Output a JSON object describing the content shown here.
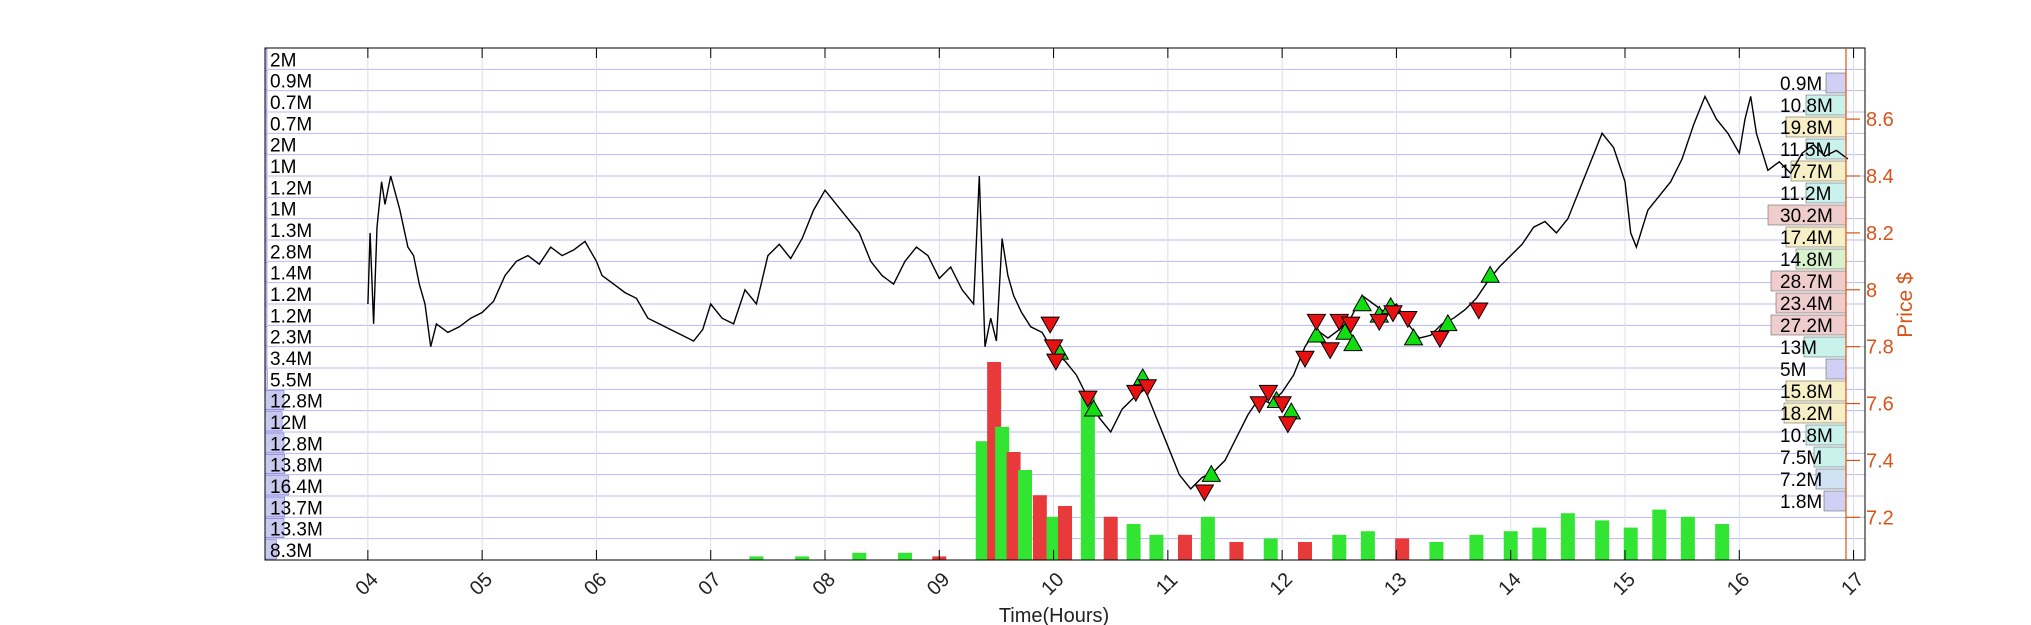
{
  "chart_data": {
    "type": "line",
    "title": "",
    "xlabel": "Time(Hours)",
    "ylabel_right": "Price $",
    "x_range": [
      3.1,
      17.1
    ],
    "y_range": [
      7.05,
      8.85
    ],
    "x_ticks": [
      {
        "value": 4,
        "label": "04"
      },
      {
        "value": 5,
        "label": "05"
      },
      {
        "value": 6,
        "label": "06"
      },
      {
        "value": 7,
        "label": "07"
      },
      {
        "value": 8,
        "label": "08"
      },
      {
        "value": 9,
        "label": "09"
      },
      {
        "value": 10,
        "label": "10"
      },
      {
        "value": 11,
        "label": "11"
      },
      {
        "value": 12,
        "label": "12"
      },
      {
        "value": 13,
        "label": "13"
      },
      {
        "value": 14,
        "label": "14"
      },
      {
        "value": 15,
        "label": "15"
      },
      {
        "value": 16,
        "label": "16"
      },
      {
        "value": 17,
        "label": "17"
      }
    ],
    "y_ticks": [
      {
        "value": 7.2,
        "label": "7.2"
      },
      {
        "value": 7.4,
        "label": "7.4"
      },
      {
        "value": 7.6,
        "label": "7.6"
      },
      {
        "value": 7.8,
        "label": "7.8"
      },
      {
        "value": 8.0,
        "label": "8"
      },
      {
        "value": 8.2,
        "label": "8.2"
      },
      {
        "value": 8.4,
        "label": "8.4"
      },
      {
        "value": 8.6,
        "label": "8.6"
      }
    ],
    "left_volume_labels": [
      "2M",
      "0.9M",
      "0.7M",
      "0.7M",
      "2M",
      "1M",
      "1.2M",
      "1M",
      "1.3M",
      "2.8M",
      "1.4M",
      "1.2M",
      "1.2M",
      "2.3M",
      "3.4M",
      "5.5M",
      "12.8M",
      "12M",
      "12.8M",
      "13.8M",
      "16.4M",
      "13.7M",
      "13.3M",
      "8.3M"
    ],
    "left_volume_fraction": [
      0.02,
      0.01,
      0.01,
      0.01,
      0.02,
      0.01,
      0.01,
      0.01,
      0.02,
      0.03,
      0.02,
      0.01,
      0.01,
      0.03,
      0.04,
      0.06,
      0.5,
      0.45,
      0.5,
      0.52,
      0.62,
      0.52,
      0.5,
      0.3
    ],
    "right_volume_labels": [
      "0.9M",
      "10.8M",
      "19.8M",
      "11.5M",
      "17.7M",
      "11.2M",
      "30.2M",
      "17.4M",
      "14.8M",
      "28.7M",
      "23.4M",
      "27.2M",
      "13M",
      "5M",
      "15.8M",
      "18.2M",
      "10.8M",
      "7.5M",
      "7.2M",
      "1.8M"
    ],
    "right_volume_colors": [
      "#cfd0f3",
      "#c9f2ec",
      "#f7efc5",
      "#c9f2ec",
      "#f7efc5",
      "#c9f2ec",
      "#efcdcd",
      "#f7efc5",
      "#d7f2cc",
      "#efcdcd",
      "#efcdcd",
      "#efcdcd",
      "#c9f2ec",
      "#cfd0f3",
      "#f7efc5",
      "#f7efc5",
      "#c9f2ec",
      "#c9f2ec",
      "#cfe3f3",
      "#cfd0f3"
    ],
    "price_series": [
      [
        4.0,
        7.95
      ],
      [
        4.02,
        8.2
      ],
      [
        4.05,
        7.88
      ],
      [
        4.08,
        8.22
      ],
      [
        4.12,
        8.38
      ],
      [
        4.15,
        8.3
      ],
      [
        4.2,
        8.4
      ],
      [
        4.28,
        8.28
      ],
      [
        4.35,
        8.15
      ],
      [
        4.4,
        8.12
      ],
      [
        4.45,
        8.02
      ],
      [
        4.5,
        7.95
      ],
      [
        4.55,
        7.8
      ],
      [
        4.6,
        7.88
      ],
      [
        4.7,
        7.85
      ],
      [
        4.8,
        7.87
      ],
      [
        4.9,
        7.9
      ],
      [
        5.0,
        7.92
      ],
      [
        5.1,
        7.96
      ],
      [
        5.2,
        8.05
      ],
      [
        5.3,
        8.1
      ],
      [
        5.4,
        8.12
      ],
      [
        5.5,
        8.09
      ],
      [
        5.6,
        8.15
      ],
      [
        5.7,
        8.12
      ],
      [
        5.8,
        8.14
      ],
      [
        5.9,
        8.17
      ],
      [
        6.0,
        8.1
      ],
      [
        6.05,
        8.05
      ],
      [
        6.15,
        8.02
      ],
      [
        6.25,
        7.99
      ],
      [
        6.35,
        7.97
      ],
      [
        6.45,
        7.9
      ],
      [
        6.55,
        7.88
      ],
      [
        6.65,
        7.86
      ],
      [
        6.75,
        7.84
      ],
      [
        6.85,
        7.82
      ],
      [
        6.93,
        7.86
      ],
      [
        7.0,
        7.95
      ],
      [
        7.1,
        7.9
      ],
      [
        7.2,
        7.88
      ],
      [
        7.3,
        8.0
      ],
      [
        7.4,
        7.95
      ],
      [
        7.5,
        8.12
      ],
      [
        7.6,
        8.16
      ],
      [
        7.7,
        8.11
      ],
      [
        7.8,
        8.18
      ],
      [
        7.9,
        8.28
      ],
      [
        8.0,
        8.35
      ],
      [
        8.1,
        8.3
      ],
      [
        8.2,
        8.25
      ],
      [
        8.3,
        8.2
      ],
      [
        8.4,
        8.1
      ],
      [
        8.5,
        8.05
      ],
      [
        8.6,
        8.02
      ],
      [
        8.7,
        8.1
      ],
      [
        8.8,
        8.15
      ],
      [
        8.9,
        8.12
      ],
      [
        9.0,
        8.04
      ],
      [
        9.1,
        8.08
      ],
      [
        9.2,
        8.0
      ],
      [
        9.3,
        7.95
      ],
      [
        9.35,
        8.4
      ],
      [
        9.4,
        7.8
      ],
      [
        9.45,
        7.9
      ],
      [
        9.5,
        7.82
      ],
      [
        9.55,
        8.18
      ],
      [
        9.6,
        8.05
      ],
      [
        9.65,
        7.98
      ],
      [
        9.72,
        7.92
      ],
      [
        9.8,
        7.87
      ],
      [
        9.9,
        7.85
      ],
      [
        10.0,
        7.78
      ],
      [
        10.1,
        7.75
      ],
      [
        10.2,
        7.7
      ],
      [
        10.3,
        7.62
      ],
      [
        10.4,
        7.55
      ],
      [
        10.5,
        7.5
      ],
      [
        10.6,
        7.58
      ],
      [
        10.7,
        7.62
      ],
      [
        10.8,
        7.65
      ],
      [
        10.9,
        7.55
      ],
      [
        11.0,
        7.45
      ],
      [
        11.1,
        7.35
      ],
      [
        11.2,
        7.3
      ],
      [
        11.3,
        7.34
      ],
      [
        11.4,
        7.36
      ],
      [
        11.5,
        7.4
      ],
      [
        11.6,
        7.48
      ],
      [
        11.7,
        7.56
      ],
      [
        11.8,
        7.62
      ],
      [
        11.9,
        7.6
      ],
      [
        12.0,
        7.64
      ],
      [
        12.1,
        7.7
      ],
      [
        12.2,
        7.8
      ],
      [
        12.3,
        7.86
      ],
      [
        12.4,
        7.83
      ],
      [
        12.5,
        7.86
      ],
      [
        12.6,
        7.9
      ],
      [
        12.7,
        7.98
      ],
      [
        12.8,
        7.95
      ],
      [
        12.9,
        7.92
      ],
      [
        13.0,
        7.95
      ],
      [
        13.1,
        7.88
      ],
      [
        13.2,
        7.83
      ],
      [
        13.3,
        7.84
      ],
      [
        13.4,
        7.88
      ],
      [
        13.5,
        7.9
      ],
      [
        13.6,
        7.93
      ],
      [
        13.7,
        7.97
      ],
      [
        13.8,
        8.03
      ],
      [
        13.9,
        8.08
      ],
      [
        14.0,
        8.12
      ],
      [
        14.1,
        8.16
      ],
      [
        14.2,
        8.22
      ],
      [
        14.3,
        8.24
      ],
      [
        14.4,
        8.2
      ],
      [
        14.5,
        8.25
      ],
      [
        14.6,
        8.35
      ],
      [
        14.7,
        8.45
      ],
      [
        14.8,
        8.55
      ],
      [
        14.9,
        8.5
      ],
      [
        15.0,
        8.38
      ],
      [
        15.05,
        8.2
      ],
      [
        15.1,
        8.15
      ],
      [
        15.2,
        8.28
      ],
      [
        15.3,
        8.33
      ],
      [
        15.4,
        8.38
      ],
      [
        15.5,
        8.46
      ],
      [
        15.6,
        8.58
      ],
      [
        15.7,
        8.68
      ],
      [
        15.8,
        8.6
      ],
      [
        15.9,
        8.55
      ],
      [
        16.0,
        8.48
      ],
      [
        16.05,
        8.6
      ],
      [
        16.1,
        8.68
      ],
      [
        16.15,
        8.55
      ],
      [
        16.25,
        8.42
      ],
      [
        16.35,
        8.45
      ],
      [
        16.45,
        8.41
      ],
      [
        16.55,
        8.48
      ],
      [
        16.65,
        8.51
      ],
      [
        16.75,
        8.47
      ],
      [
        16.85,
        8.49
      ],
      [
        16.95,
        8.46
      ]
    ],
    "volume_bars": [
      [
        9.38,
        0.33,
        "green"
      ],
      [
        9.48,
        0.55,
        "red"
      ],
      [
        9.55,
        0.37,
        "green"
      ],
      [
        9.65,
        0.3,
        "red"
      ],
      [
        9.75,
        0.25,
        "green"
      ],
      [
        9.88,
        0.18,
        "red"
      ],
      [
        10.0,
        0.12,
        "green"
      ],
      [
        10.1,
        0.15,
        "red"
      ],
      [
        10.3,
        0.47,
        "green"
      ],
      [
        10.5,
        0.12,
        "red"
      ],
      [
        10.7,
        0.1,
        "green"
      ],
      [
        10.9,
        0.07,
        "green"
      ],
      [
        11.15,
        0.07,
        "red"
      ],
      [
        11.35,
        0.12,
        "green"
      ],
      [
        11.6,
        0.05,
        "red"
      ],
      [
        11.9,
        0.06,
        "green"
      ],
      [
        12.2,
        0.05,
        "red"
      ],
      [
        12.5,
        0.07,
        "green"
      ],
      [
        12.75,
        0.08,
        "green"
      ],
      [
        13.05,
        0.06,
        "red"
      ],
      [
        13.35,
        0.05,
        "green"
      ],
      [
        13.7,
        0.07,
        "green"
      ],
      [
        14.0,
        0.08,
        "green"
      ],
      [
        14.25,
        0.09,
        "green"
      ],
      [
        14.5,
        0.13,
        "green"
      ],
      [
        14.8,
        0.11,
        "green"
      ],
      [
        15.05,
        0.09,
        "green"
      ],
      [
        15.3,
        0.14,
        "green"
      ],
      [
        15.55,
        0.12,
        "green"
      ],
      [
        15.85,
        0.1,
        "green"
      ],
      [
        7.4,
        0.01,
        "green"
      ],
      [
        7.8,
        0.01,
        "green"
      ],
      [
        8.3,
        0.02,
        "green"
      ],
      [
        8.7,
        0.02,
        "green"
      ],
      [
        9.0,
        0.01,
        "red"
      ]
    ],
    "buy_markers": [
      [
        10.05,
        7.78
      ],
      [
        10.35,
        7.58
      ],
      [
        10.78,
        7.69
      ],
      [
        11.38,
        7.35
      ],
      [
        11.95,
        7.61
      ],
      [
        12.08,
        7.57
      ],
      [
        12.3,
        7.84
      ],
      [
        12.55,
        7.85
      ],
      [
        12.62,
        7.81
      ],
      [
        12.7,
        7.95
      ],
      [
        12.85,
        7.91
      ],
      [
        12.95,
        7.94
      ],
      [
        13.15,
        7.83
      ],
      [
        13.45,
        7.88
      ],
      [
        13.82,
        8.05
      ]
    ],
    "sell_markers": [
      [
        9.97,
        7.88
      ],
      [
        10.0,
        7.8
      ],
      [
        10.02,
        7.75
      ],
      [
        10.3,
        7.62
      ],
      [
        10.72,
        7.64
      ],
      [
        10.82,
        7.66
      ],
      [
        11.32,
        7.29
      ],
      [
        11.8,
        7.6
      ],
      [
        11.88,
        7.64
      ],
      [
        12.0,
        7.6
      ],
      [
        12.05,
        7.53
      ],
      [
        12.2,
        7.76
      ],
      [
        12.3,
        7.89
      ],
      [
        12.42,
        7.79
      ],
      [
        12.5,
        7.89
      ],
      [
        12.6,
        7.88
      ],
      [
        12.85,
        7.89
      ],
      [
        12.97,
        7.92
      ],
      [
        13.1,
        7.9
      ],
      [
        13.38,
        7.83
      ],
      [
        13.72,
        7.93
      ]
    ]
  }
}
